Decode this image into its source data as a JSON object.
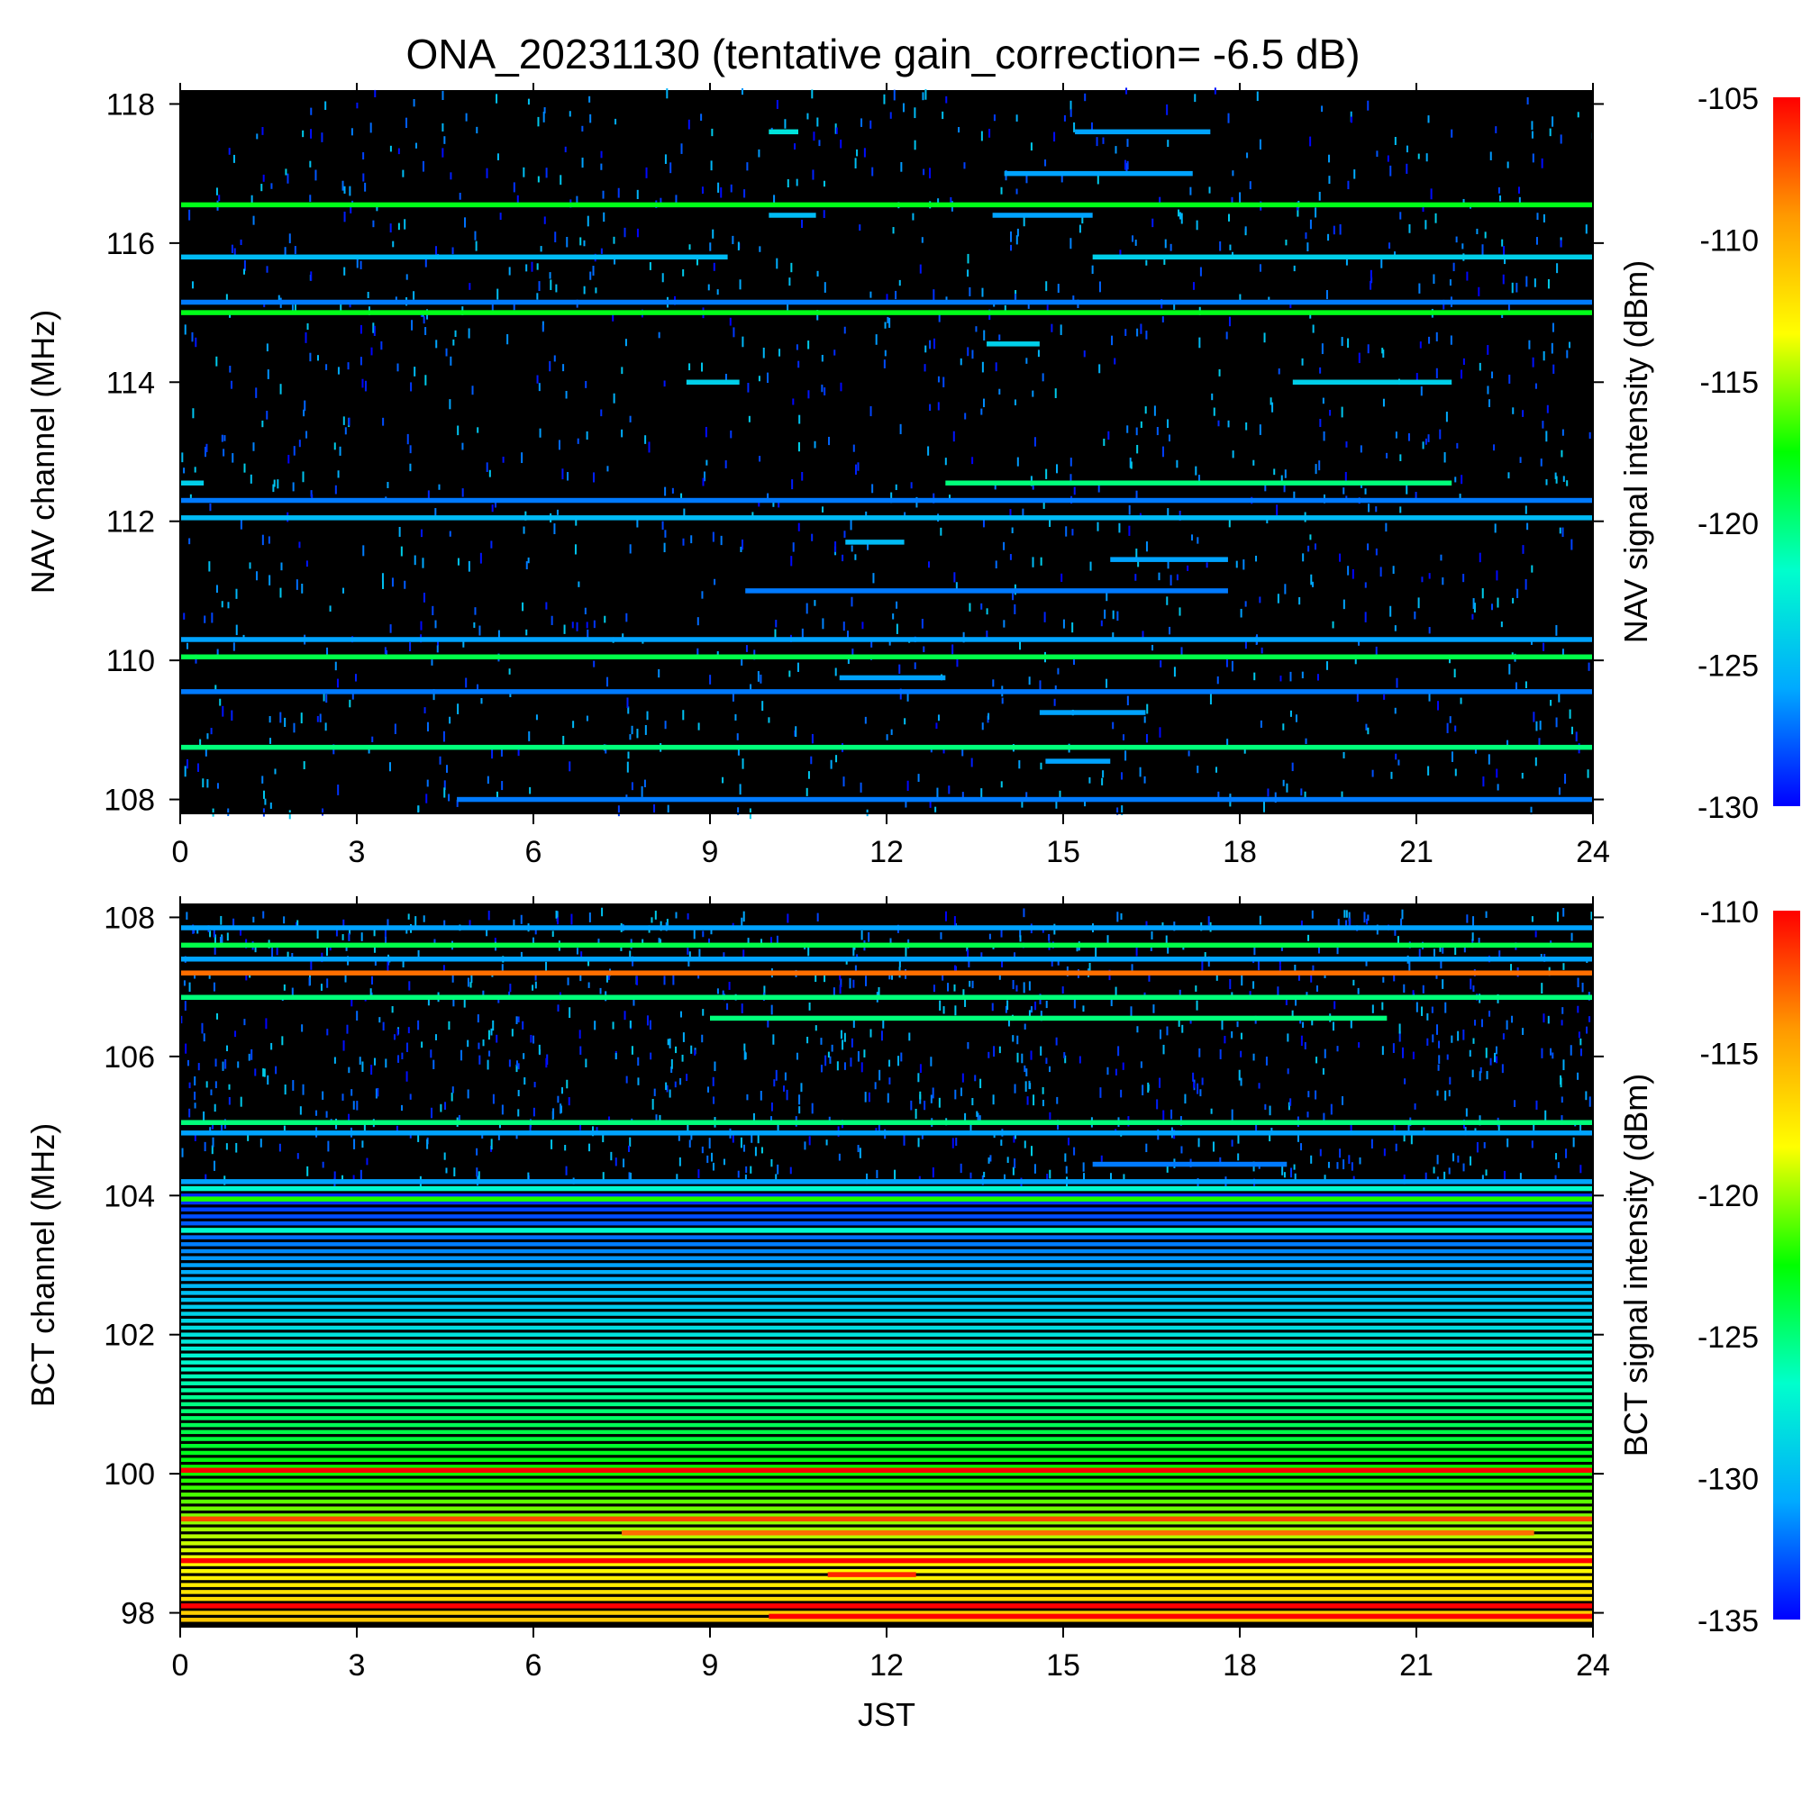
{
  "title": "ONA_20231130 (tentative gain_correction= -6.5 dB)",
  "colors": {
    "background": "#000000",
    "colormap": [
      "#0000ff",
      "#00aaff",
      "#00ffcc",
      "#00ff00",
      "#ffff00",
      "#ff9900",
      "#ff0000"
    ]
  },
  "chart_data": [
    {
      "type": "heatmap",
      "panel": "NAV",
      "ylabel": "NAV channel (MHz)",
      "xlabel": "",
      "xlim": [
        0,
        24
      ],
      "ylim": [
        107.8,
        118.2
      ],
      "xticks": [
        0,
        3,
        6,
        9,
        12,
        15,
        18,
        21,
        24
      ],
      "yticks": [
        108,
        110,
        112,
        114,
        116,
        118
      ],
      "colorbar": {
        "label": "NAV signal intensity (dBm)",
        "range": [
          -130,
          -105
        ],
        "ticks": [
          -105,
          -110,
          -115,
          -120,
          -125,
          -130
        ]
      },
      "noise_floor": -131,
      "bands": [
        {
          "freq": 116.55,
          "start": 0,
          "end": 24,
          "level": -118
        },
        {
          "freq": 115.0,
          "start": 0,
          "end": 24,
          "level": -118
        },
        {
          "freq": 115.8,
          "start": 0,
          "end": 9.3,
          "level": -125
        },
        {
          "freq": 115.8,
          "start": 15.5,
          "end": 24,
          "level": -124
        },
        {
          "freq": 115.15,
          "start": 0,
          "end": 24,
          "level": -127
        },
        {
          "freq": 112.55,
          "start": 13.0,
          "end": 21.6,
          "level": -120
        },
        {
          "freq": 112.55,
          "start": 0,
          "end": 0.4,
          "level": -124
        },
        {
          "freq": 112.3,
          "start": 0,
          "end": 24,
          "level": -127
        },
        {
          "freq": 112.05,
          "start": 0,
          "end": 24,
          "level": -125
        },
        {
          "freq": 110.3,
          "start": 0,
          "end": 24,
          "level": -126
        },
        {
          "freq": 110.05,
          "start": 0,
          "end": 24,
          "level": -119
        },
        {
          "freq": 109.55,
          "start": 0,
          "end": 24,
          "level": -127
        },
        {
          "freq": 108.75,
          "start": 0,
          "end": 24,
          "level": -120
        },
        {
          "freq": 108.0,
          "start": 4.7,
          "end": 24,
          "level": -127
        },
        {
          "freq": 117.6,
          "start": 15.2,
          "end": 17.5,
          "level": -126
        },
        {
          "freq": 117.6,
          "start": 10.0,
          "end": 10.5,
          "level": -123
        },
        {
          "freq": 117.0,
          "start": 14.0,
          "end": 17.2,
          "level": -126
        },
        {
          "freq": 116.4,
          "start": 10.0,
          "end": 10.8,
          "level": -125
        },
        {
          "freq": 116.4,
          "start": 13.8,
          "end": 15.5,
          "level": -126
        },
        {
          "freq": 114.0,
          "start": 18.9,
          "end": 21.6,
          "level": -124
        },
        {
          "freq": 114.0,
          "start": 8.6,
          "end": 9.5,
          "level": -124
        },
        {
          "freq": 114.55,
          "start": 13.7,
          "end": 14.6,
          "level": -124
        },
        {
          "freq": 111.0,
          "start": 9.6,
          "end": 17.8,
          "level": -127
        },
        {
          "freq": 111.45,
          "start": 15.8,
          "end": 17.8,
          "level": -126
        },
        {
          "freq": 111.7,
          "start": 11.3,
          "end": 12.3,
          "level": -125
        },
        {
          "freq": 109.75,
          "start": 11.2,
          "end": 13.0,
          "level": -126
        },
        {
          "freq": 109.25,
          "start": 14.6,
          "end": 16.4,
          "level": -126
        },
        {
          "freq": 108.55,
          "start": 14.7,
          "end": 15.8,
          "level": -126
        }
      ]
    },
    {
      "type": "heatmap",
      "panel": "BCT",
      "ylabel": "BCT channel (MHz)",
      "xlabel": "JST",
      "xlim": [
        0,
        24
      ],
      "ylim": [
        97.8,
        108.2
      ],
      "xticks": [
        0,
        3,
        6,
        9,
        12,
        15,
        18,
        21,
        24
      ],
      "yticks": [
        98,
        100,
        102,
        104,
        106,
        108
      ],
      "colorbar": {
        "label": "BCT signal intensity (dBm)",
        "range": [
          -135,
          -110
        ],
        "ticks": [
          -110,
          -115,
          -120,
          -125,
          -130,
          -135
        ]
      },
      "noise_floor": -136,
      "gradient": {
        "from_freq": 97.9,
        "to_freq": 104.0,
        "from_level": -116,
        "to_level": -134
      },
      "bands": [
        {
          "freq": 107.2,
          "start": 0,
          "end": 24,
          "level": -113
        },
        {
          "freq": 107.85,
          "start": 0,
          "end": 24,
          "level": -131
        },
        {
          "freq": 107.6,
          "start": 0,
          "end": 24,
          "level": -124
        },
        {
          "freq": 107.4,
          "start": 0,
          "end": 24,
          "level": -131
        },
        {
          "freq": 106.85,
          "start": 0,
          "end": 24,
          "level": -125
        },
        {
          "freq": 106.55,
          "start": 9.0,
          "end": 20.5,
          "level": -125
        },
        {
          "freq": 105.05,
          "start": 0,
          "end": 24,
          "level": -125
        },
        {
          "freq": 104.9,
          "start": 0,
          "end": 24,
          "level": -131
        },
        {
          "freq": 104.45,
          "start": 15.5,
          "end": 18.8,
          "level": -132
        },
        {
          "freq": 104.2,
          "start": 0,
          "end": 24,
          "level": -131
        },
        {
          "freq": 104.1,
          "start": 0,
          "end": 24,
          "level": -127
        },
        {
          "freq": 103.95,
          "start": 0,
          "end": 24,
          "level": -122
        },
        {
          "freq": 103.5,
          "start": 0,
          "end": 24,
          "level": -127
        },
        {
          "freq": 100.05,
          "start": 0,
          "end": 24,
          "level": -110
        },
        {
          "freq": 99.35,
          "start": 0,
          "end": 24,
          "level": -112
        },
        {
          "freq": 99.15,
          "start": 7.5,
          "end": 23.0,
          "level": -113
        },
        {
          "freq": 98.75,
          "start": 0,
          "end": 24,
          "level": -110
        },
        {
          "freq": 98.55,
          "start": 11.0,
          "end": 12.5,
          "level": -111
        },
        {
          "freq": 98.1,
          "start": 0,
          "end": 24,
          "level": -110
        },
        {
          "freq": 97.95,
          "start": 10.0,
          "end": 24,
          "level": -110
        }
      ]
    }
  ]
}
